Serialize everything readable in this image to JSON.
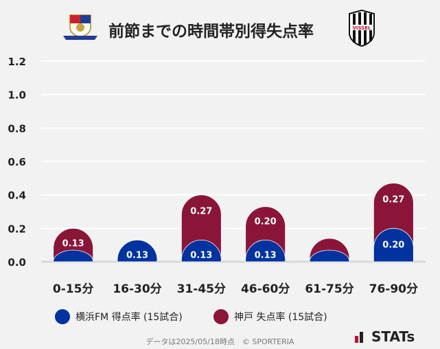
{
  "title": "前節までの時間帯別得失点率",
  "logos": {
    "left": "Yokohama F·Marinos",
    "right": "VISSEL"
  },
  "colors": {
    "home": "#0033a0",
    "away": "#8b1538"
  },
  "chart_data": {
    "type": "bar",
    "stacked": true,
    "categories": [
      "0-15分",
      "16-30分",
      "31-45分",
      "46-60分",
      "61-75分",
      "76-90分"
    ],
    "series": [
      {
        "name": "横浜FM 得点率 (15試合)",
        "values": [
          0.07,
          0.13,
          0.13,
          0.13,
          0.07,
          0.2
        ],
        "labels": [
          "",
          "0.13",
          "0.13",
          "0.13",
          "",
          "0.20"
        ]
      },
      {
        "name": "神戸 失点率 (15試合)",
        "values": [
          0.13,
          0,
          0.27,
          0.2,
          0.07,
          0.27
        ],
        "labels": [
          "0.13",
          "",
          "0.27",
          "0.20",
          "",
          "0.27"
        ]
      }
    ],
    "ylim": [
      0,
      1.2
    ],
    "yticks": [
      "0.0",
      "0.2",
      "0.4",
      "0.6",
      "0.8",
      "1.0",
      "1.2"
    ],
    "grid": true,
    "legend": "bottom"
  },
  "footer": "データは2025/05/18時点　© SPORTERIA",
  "brand": "STATs"
}
